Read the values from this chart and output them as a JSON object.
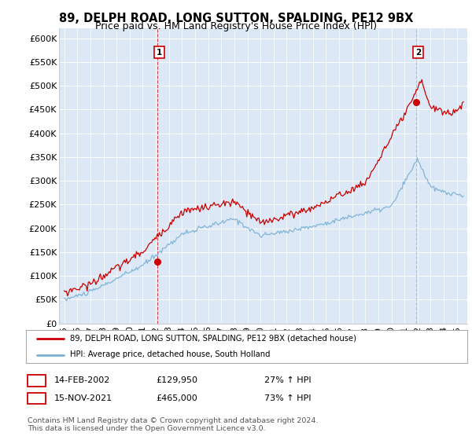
{
  "title": "89, DELPH ROAD, LONG SUTTON, SPALDING, PE12 9BX",
  "subtitle": "Price paid vs. HM Land Registry's House Price Index (HPI)",
  "ylim": [
    0,
    620000
  ],
  "yticks": [
    0,
    50000,
    100000,
    150000,
    200000,
    250000,
    300000,
    350000,
    400000,
    450000,
    500000,
    550000,
    600000
  ],
  "sale1_year": 2002.12,
  "sale1_price": 129950,
  "sale2_year": 2021.88,
  "sale2_price": 465000,
  "legend_label_red": "89, DELPH ROAD, LONG SUTTON, SPALDING, PE12 9BX (detached house)",
  "legend_label_blue": "HPI: Average price, detached house, South Holland",
  "footer": "Contains HM Land Registry data © Crown copyright and database right 2024.\nThis data is licensed under the Open Government Licence v3.0.",
  "red_color": "#cc0000",
  "blue_color": "#7ab0d4",
  "vline1_color": "#cc0000",
  "vline2_color": "#aaaaaa",
  "background_color": "#ffffff",
  "plot_bg_color": "#dce8f5"
}
